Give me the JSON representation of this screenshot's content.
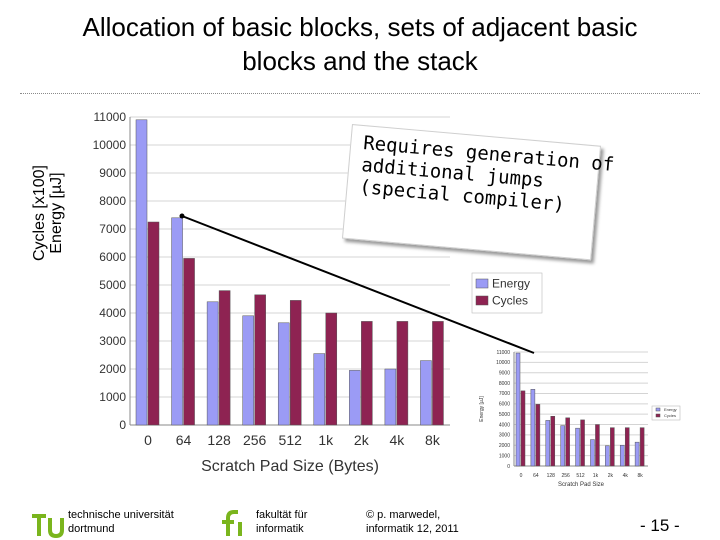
{
  "slide": {
    "title_line1": "Allocation of basic blocks, sets of adjacent basic",
    "title_line2": "blocks and the stack",
    "ylabel_line1": "Cycles [x100]",
    "ylabel_line2": "Energy [µJ]",
    "note_lines": [
      "Requires generation of",
      "additional jumps",
      "(special compiler)"
    ]
  },
  "footer": {
    "tu_line1": "technische universität",
    "tu_line2": "dortmund",
    "fi_line1": "fakultät für",
    "fi_line2": "informatik",
    "copyright_line1": "© p. marwedel,",
    "copyright_line2": "informatik 12,  2011",
    "page": "-  15 -"
  },
  "colors": {
    "energy": "#9b9bf5",
    "cycles": "#8e2352",
    "tu_green": "#7ab51d",
    "text": "#000000"
  },
  "chart_data": [
    {
      "type": "bar",
      "categories": [
        "0",
        "64",
        "128",
        "256",
        "512",
        "1k",
        "2k",
        "4k",
        "8k"
      ],
      "series": [
        {
          "name": "Energy",
          "values": [
            10900,
            7400,
            4400,
            3900,
            3650,
            2550,
            1950,
            2000,
            2300
          ]
        },
        {
          "name": "Cycles",
          "values": [
            7250,
            5950,
            4800,
            4650,
            4450,
            4000,
            3700,
            3700,
            3700
          ]
        }
      ],
      "yticks": [
        0,
        1000,
        2000,
        3000,
        4000,
        5000,
        6000,
        7000,
        8000,
        9000,
        10000,
        11000
      ],
      "ylim": [
        0,
        11000
      ],
      "xlabel": "Scratch Pad Size (Bytes)",
      "legend": "right",
      "grid": true
    },
    {
      "type": "bar",
      "categories": [
        "0",
        "64",
        "128",
        "256",
        "512",
        "1k",
        "2k",
        "4k",
        "8k"
      ],
      "series": [
        {
          "name": "Energy",
          "values": [
            10900,
            7400,
            4400,
            3900,
            3650,
            2550,
            1950,
            2000,
            2300
          ]
        },
        {
          "name": "Cycles",
          "values": [
            7250,
            5950,
            4800,
            4650,
            4450,
            4000,
            3700,
            3700,
            3700
          ]
        }
      ],
      "yticks": [
        0,
        1000,
        2000,
        3000,
        4000,
        5000,
        6000,
        7000,
        8000,
        9000,
        10000,
        11000
      ],
      "ylim": [
        0,
        11000
      ],
      "xlabel": "Scratch Pad Size",
      "ylabel": "Energy [µJ]",
      "legend": "right",
      "grid": true
    }
  ]
}
